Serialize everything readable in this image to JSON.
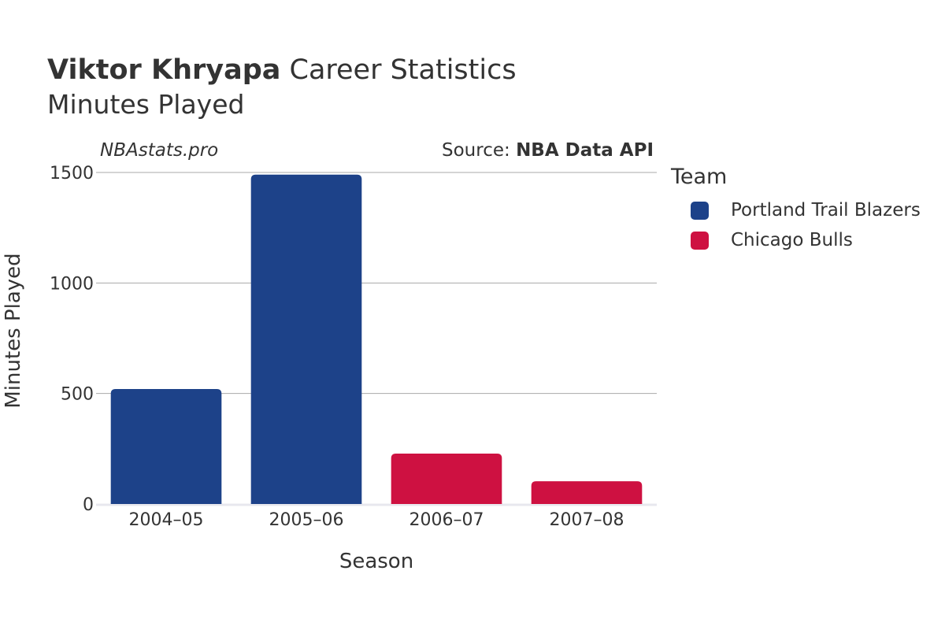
{
  "header": {
    "player": "Viktor Khryapa",
    "title_rest": " Career Statistics",
    "subtitle": "Minutes Played"
  },
  "watermark": "NBAstats.pro",
  "source": {
    "prefix": "Source: ",
    "name": "NBA Data API"
  },
  "legend": {
    "title": "Team",
    "items": [
      {
        "label": "Portland Trail Blazers",
        "color": "#1d4289"
      },
      {
        "label": "Chicago Bulls",
        "color": "#ce1141"
      }
    ]
  },
  "chart_data": {
    "type": "bar",
    "title": "Viktor Khryapa Career Statistics",
    "subtitle": "Minutes Played",
    "xlabel": "Season",
    "ylabel": "Minutes Played",
    "categories": [
      "2004–05",
      "2005–06",
      "2006–07",
      "2007–08"
    ],
    "values": [
      520,
      1490,
      228,
      103
    ],
    "teams": [
      "Portland Trail Blazers",
      "Portland Trail Blazers",
      "Chicago Bulls",
      "Chicago Bulls"
    ],
    "colors": [
      "#1d4289",
      "#1d4289",
      "#ce1141",
      "#ce1141"
    ],
    "ylim": [
      0,
      1500
    ],
    "yticks": [
      0,
      500,
      1000,
      1500
    ],
    "grid": true,
    "legend_position": "right"
  }
}
